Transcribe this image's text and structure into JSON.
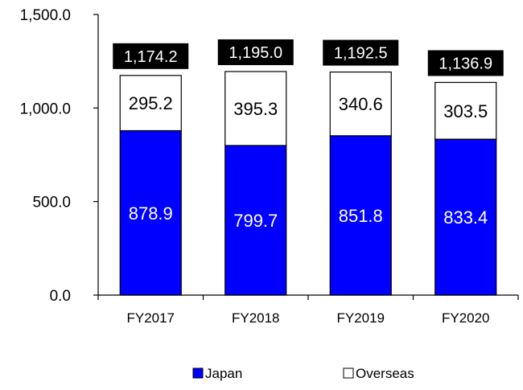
{
  "chart_data": {
    "type": "bar",
    "stacked": true,
    "categories": [
      "FY2017",
      "FY2018",
      "FY2019",
      "FY2020"
    ],
    "series": [
      {
        "name": "Japan",
        "values": [
          878.9,
          799.7,
          851.8,
          833.4
        ],
        "color": "#0000ff"
      },
      {
        "name": "Overseas",
        "values": [
          295.2,
          395.3,
          340.6,
          303.5
        ],
        "color": "#ffffff"
      }
    ],
    "value_labels": {
      "Japan": [
        "878.9",
        "799.7",
        "851.8",
        "833.4"
      ],
      "Overseas": [
        "295.2",
        "395.3",
        "340.6",
        "303.5"
      ]
    },
    "totals": [
      1174.2,
      1195.0,
      1192.5,
      1136.9
    ],
    "total_labels": [
      "1,174.2",
      "1,195.0",
      "1,192.5",
      "1,136.9"
    ],
    "yticks": [
      0,
      500,
      1000,
      1500
    ],
    "ytick_labels": [
      "0.0",
      "500.0",
      "1,000.0",
      "1,500.0"
    ],
    "ylim": [
      0,
      1500
    ],
    "grid": false,
    "legend_position": "bottom",
    "legend": [
      "Japan",
      "Overseas"
    ],
    "title": "",
    "xlabel": "",
    "ylabel": ""
  }
}
